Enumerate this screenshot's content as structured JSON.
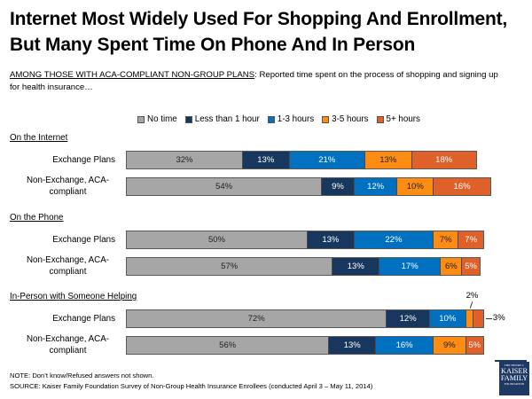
{
  "chart_data": {
    "type": "bar",
    "orientation": "horizontal",
    "stacked": true,
    "title": "Internet Most Widely Used For Shopping And Enrollment, But Many Spent Time On Phone And In Person",
    "subtitle_prefix": "AMONG THOSE WITH ACA-COMPLIANT NON-GROUP PLANS",
    "subtitle_text": ":  Reported time spent on the process of shopping and signing up for health insurance…",
    "xlabel": "",
    "ylabel": "",
    "grid": false,
    "legend_position": "top",
    "series": [
      {
        "name": "No time",
        "color": "#a6a6a6",
        "text_color": "#222222"
      },
      {
        "name": "Less than 1 hour",
        "color": "#17375e",
        "text_color": "#ffffff"
      },
      {
        "name": "1-3 hours",
        "color": "#0070c0",
        "text_color": "#ffffff"
      },
      {
        "name": "3-5 hours",
        "color": "#ff8c12",
        "text_color": "#222222"
      },
      {
        "name": "5+ hours",
        "color": "#e0602a",
        "text_color": "#ffffff"
      }
    ],
    "groups": [
      {
        "name": "On the Internet",
        "rows": [
          {
            "label": "Exchange Plans",
            "values": [
              32,
              13,
              21,
              13,
              18
            ],
            "labels": [
              "32%",
              "13%",
              "21%",
              "13%",
              "18%"
            ]
          },
          {
            "label": "Non-Exchange, ACA-compliant",
            "values": [
              54,
              9,
              12,
              10,
              16
            ],
            "labels": [
              "54%",
              "9%",
              "12%",
              "10%",
              "16%"
            ]
          }
        ]
      },
      {
        "name": "On the Phone",
        "rows": [
          {
            "label": "Exchange Plans",
            "values": [
              50,
              13,
              22,
              7,
              7
            ],
            "labels": [
              "50%",
              "13%",
              "22%",
              "7%",
              "7%"
            ]
          },
          {
            "label": "Non-Exchange, ACA-compliant",
            "values": [
              57,
              13,
              17,
              6,
              5
            ],
            "labels": [
              "57%",
              "13%",
              "17%",
              "6%",
              "5%"
            ]
          }
        ]
      },
      {
        "name": "In-Person with Someone Helping",
        "rows": [
          {
            "label": "Exchange Plans",
            "values": [
              72,
              12,
              10,
              2,
              3
            ],
            "labels": [
              "72%",
              "12%",
              "10%",
              "",
              ""
            ],
            "callouts": [
              "2%",
              "3%"
            ]
          },
          {
            "label": "Non-Exchange, ACA-compliant",
            "values": [
              56,
              13,
              16,
              9,
              5
            ],
            "labels": [
              "56%",
              "13%",
              "16%",
              "9%",
              "5%"
            ]
          }
        ]
      }
    ]
  },
  "footer": {
    "note": "NOTE: Don’t know/Refused answers not shown.",
    "source": "SOURCE: Kaiser Family Foundation Survey of Non-Group Health Insurance Enrollees (conducted April 3 – May 11, 2014)"
  },
  "logo": {
    "line1": "THE HENRY J.",
    "line2": "KAISER",
    "line3": "FAMILY",
    "line4": "FOUNDATION"
  }
}
